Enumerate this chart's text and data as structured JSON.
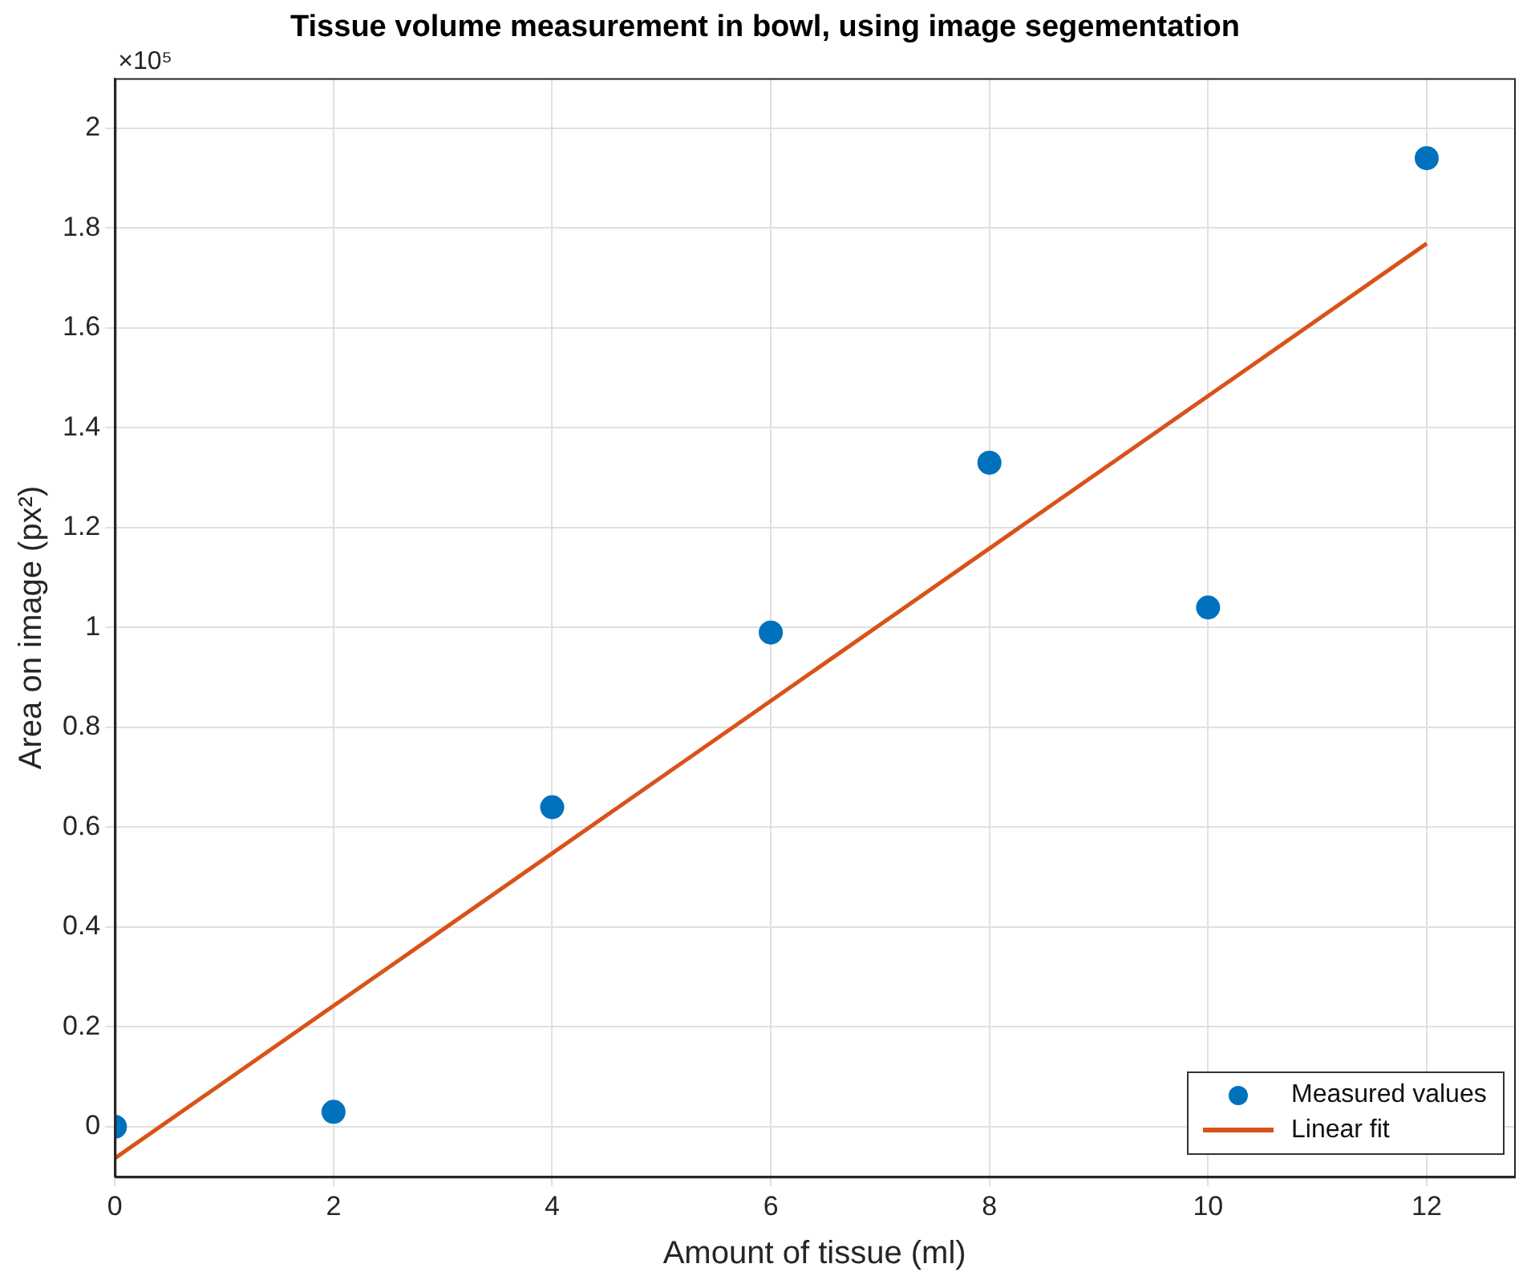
{
  "chart_data": {
    "type": "scatter",
    "title": "Tissue volume measurement in bowl, using image segementation",
    "xlabel": "Amount of tissue (ml)",
    "ylabel": "Area on image (px²)",
    "annotations": [
      "×10⁵"
    ],
    "series": [
      {
        "name": "Measured values",
        "color": "#0072bd",
        "x": [
          0,
          2,
          4,
          6,
          8,
          10,
          12
        ],
        "values": [
          0,
          0.03,
          0.64,
          0.99,
          1.33,
          1.04,
          1.94
        ],
        "marker": "circle"
      },
      {
        "name": "Linear fit",
        "type": "line",
        "color": "#d95319",
        "x": [
          0,
          12
        ],
        "values": [
          -0.063,
          1.769
        ],
        "marker": "none"
      }
    ],
    "xlim": [
      0,
      12.8
    ],
    "xticks": [
      0,
      2,
      4,
      6,
      8,
      10,
      12
    ],
    "ylim": [
      -0.1,
      2.1
    ],
    "yticks": [
      0,
      0.2,
      0.4,
      0.6,
      0.8,
      1,
      1.2,
      1.4,
      1.6,
      1.8,
      2
    ],
    "grid": true,
    "legend": "bottom right"
  }
}
